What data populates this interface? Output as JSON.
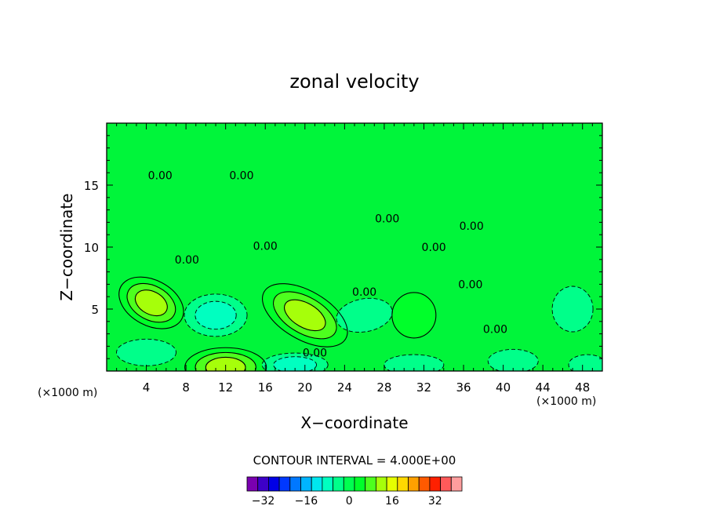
{
  "chart_data": {
    "type": "contour",
    "title": "zonal velocity",
    "xlabel": "X−coordinate",
    "ylabel": "Z−coordinate",
    "x_unit": "(×1000 m)",
    "x_unit_right": "(×1000 m)",
    "xlim": [
      0,
      50
    ],
    "ylim": [
      0,
      20
    ],
    "x_ticks": [
      "4",
      "8",
      "12",
      "16",
      "20",
      "24",
      "28",
      "32",
      "36",
      "40",
      "44",
      "48"
    ],
    "x_tick_values": [
      4,
      8,
      12,
      16,
      20,
      24,
      28,
      32,
      36,
      40,
      44,
      48
    ],
    "y_ticks": [
      "5",
      "10",
      "15"
    ],
    "y_tick_values": [
      5,
      10,
      15
    ],
    "contour_interval_text": "CONTOUR INTERVAL = 4.000E+00",
    "contour_interval": 4,
    "zero_contour_labels": [
      {
        "text": "0.00",
        "x": 5.4,
        "z": 15.8
      },
      {
        "text": "0.00",
        "x": 13.6,
        "z": 15.8
      },
      {
        "text": "0.00",
        "x": 16.0,
        "z": 10.1
      },
      {
        "text": "0.00",
        "x": 8.1,
        "z": 9.0
      },
      {
        "text": "0.00",
        "x": 28.3,
        "z": 12.3
      },
      {
        "text": "0.00",
        "x": 36.8,
        "z": 11.7
      },
      {
        "text": "0.00",
        "x": 33.0,
        "z": 10.0
      },
      {
        "text": "0.00",
        "x": 26.0,
        "z": 6.4
      },
      {
        "text": "0.00",
        "x": 36.7,
        "z": 7.0
      },
      {
        "text": "0.00",
        "x": 39.2,
        "z": 3.4
      },
      {
        "text": "0.00",
        "x": 21.0,
        "z": 1.5
      }
    ],
    "colorbar": {
      "colors": [
        "#7a00b0",
        "#3d00c8",
        "#0000e6",
        "#0038ff",
        "#0078ff",
        "#00b4ff",
        "#00e6ee",
        "#00ffc0",
        "#00ff8a",
        "#00ff50",
        "#00ff2a",
        "#4dff1e",
        "#a6ff0a",
        "#e6ff00",
        "#ffd800",
        "#ffa000",
        "#ff5a00",
        "#ff2000",
        "#ff5a5a",
        "#ff9e9e"
      ],
      "tick_labels": [
        "−32",
        "−16",
        "0",
        "16",
        "32"
      ],
      "tick_values": [
        -32,
        -16,
        0,
        16,
        32
      ]
    },
    "features": [
      {
        "sign": "positive",
        "x": 4.5,
        "z": 5.5,
        "peak": 12
      },
      {
        "sign": "positive",
        "x": 20.0,
        "z": 4.5,
        "peak": 12
      },
      {
        "sign": "positive",
        "x": 12.0,
        "z": 0.3,
        "peak": 12
      },
      {
        "sign": "positive",
        "x": 31.0,
        "z": 4.5,
        "peak": 4
      },
      {
        "sign": "negative",
        "x": 11.0,
        "z": 4.5,
        "peak": -8
      },
      {
        "sign": "negative",
        "x": 26.0,
        "z": 4.5,
        "peak": -4
      },
      {
        "sign": "negative",
        "x": 4.0,
        "z": 1.5,
        "peak": -4
      },
      {
        "sign": "negative",
        "x": 19.0,
        "z": 0.5,
        "peak": -8
      },
      {
        "sign": "negative",
        "x": 31.0,
        "z": 0.5,
        "peak": -4
      },
      {
        "sign": "negative",
        "x": 41.0,
        "z": 0.8,
        "peak": -4
      },
      {
        "sign": "negative",
        "x": 47.0,
        "z": 5.0,
        "peak": -4
      },
      {
        "sign": "negative",
        "x": 48.5,
        "z": 0.5,
        "peak": -4
      }
    ]
  }
}
